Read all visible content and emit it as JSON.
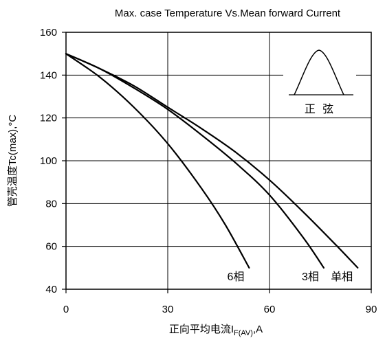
{
  "chart_data": {
    "type": "line",
    "title": "Max. case Temperature Vs.Mean forward Current",
    "xlabel_main": "正向平均电流I",
    "xlabel_sub": "F(AV)",
    "xlabel_tail": ",A",
    "ylabel": "管壳温度Tc(max),°C",
    "xlim": [
      0,
      90
    ],
    "ylim": [
      40,
      160
    ],
    "x_ticks": [
      "0",
      "30",
      "60",
      "90"
    ],
    "y_ticks": [
      "40",
      "60",
      "80",
      "100",
      "120",
      "140",
      "160"
    ],
    "grid": true,
    "series": [
      {
        "name": "6相",
        "x": [
          0,
          10,
          20,
          30,
          40,
          47,
          54
        ],
        "y": [
          150,
          139,
          125,
          108,
          87,
          70,
          50
        ]
      },
      {
        "name": "3相",
        "x": [
          0,
          10,
          20,
          30,
          40,
          50,
          60,
          70,
          76
        ],
        "y": [
          150,
          143,
          134,
          124,
          112,
          99,
          84,
          64,
          50
        ]
      },
      {
        "name": "单相",
        "x": [
          0,
          10,
          20,
          30,
          40,
          50,
          60,
          70,
          80,
          86
        ],
        "y": [
          150,
          143,
          135,
          125,
          115,
          104,
          91,
          76,
          60,
          50
        ]
      }
    ],
    "inset_label": "正  弦"
  }
}
